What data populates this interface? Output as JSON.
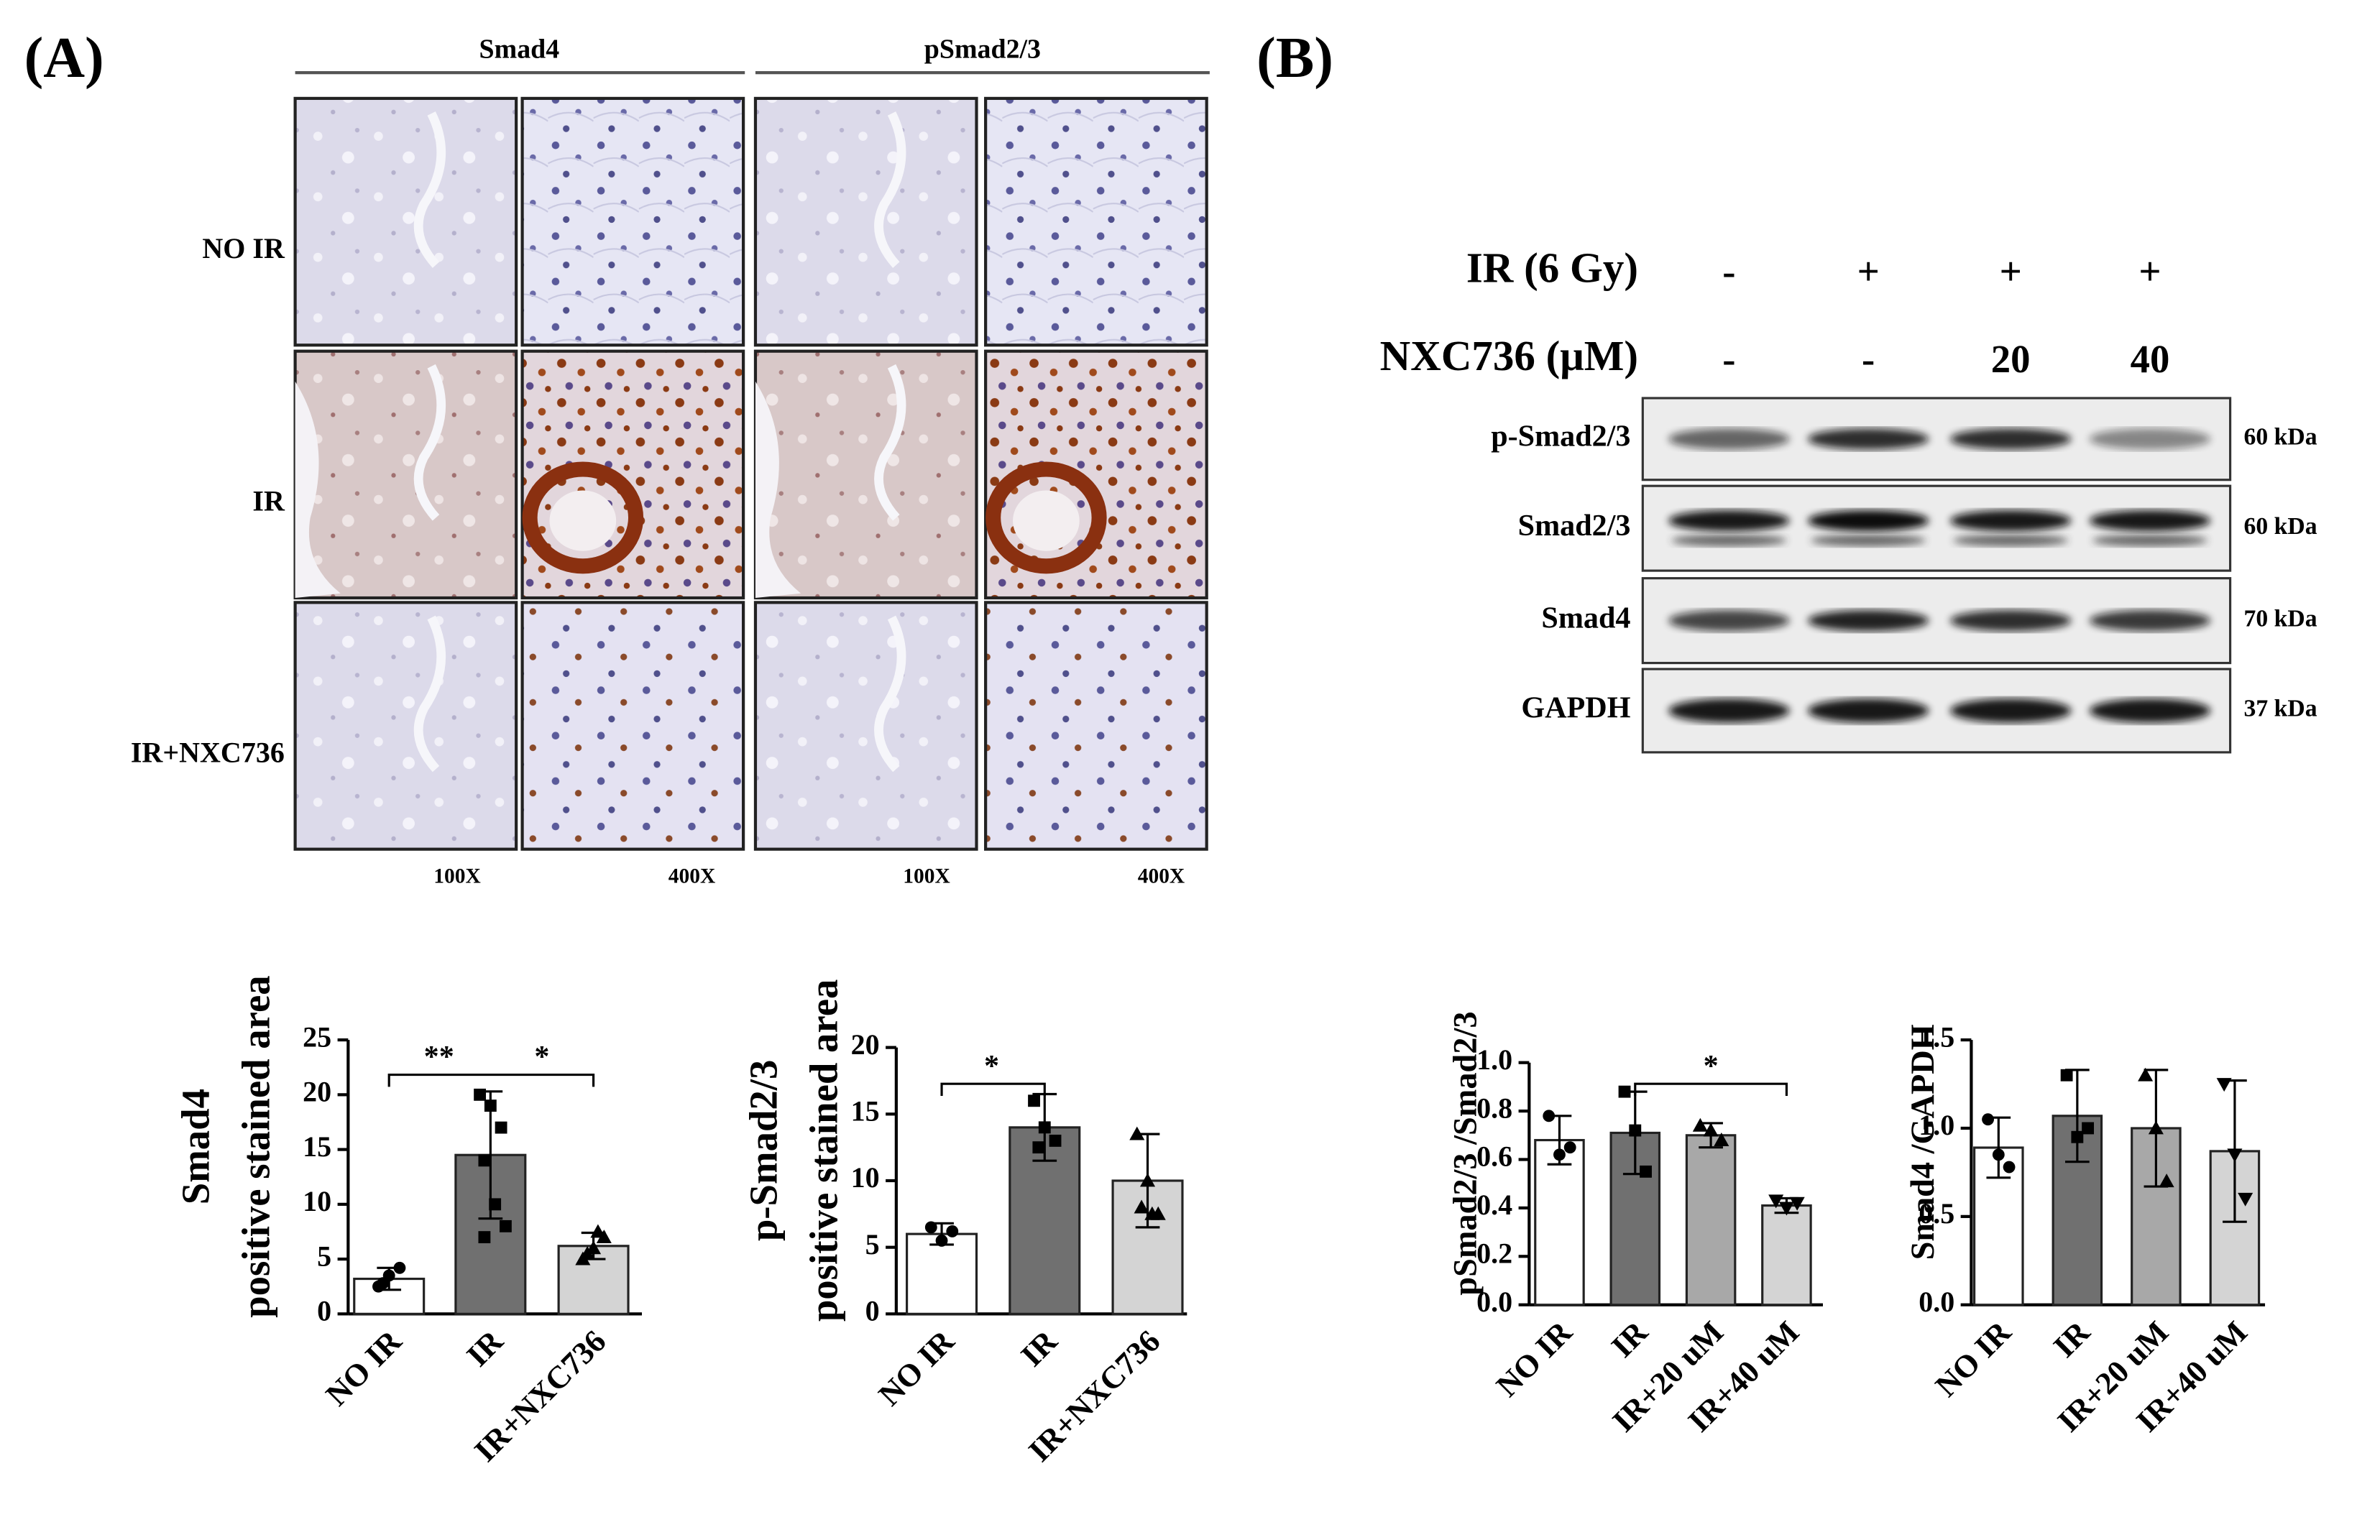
{
  "panel_labels": [
    "(A)",
    "(B)"
  ],
  "histology": {
    "columns": [
      "Smad4",
      "pSmad2/3"
    ],
    "rows": [
      "NO IR",
      "IR",
      "IR+NXC736"
    ],
    "magnifications": [
      "100X",
      "400X",
      "100X",
      "400X"
    ]
  },
  "blot": {
    "conditions": [
      {
        "label": "IR (6 Gy)",
        "lanes": [
          "-",
          "+",
          "+",
          "+"
        ]
      },
      {
        "label": "NXC736 (μM)",
        "lanes": [
          "-",
          "-",
          "20",
          "40"
        ]
      }
    ],
    "bands": [
      {
        "label": "p-Smad2/3",
        "size": "60 kDa"
      },
      {
        "label": "Smad2/3",
        "size": "60 kDa"
      },
      {
        "label": "Smad4",
        "size": "70 kDa"
      },
      {
        "label": "GAPDH",
        "size": "37 kDa"
      }
    ]
  },
  "chart_data": [
    {
      "type": "bar",
      "ylabel": [
        "Smad4",
        "positive stained area"
      ],
      "categories": [
        "NO IR",
        "IR",
        "IR+NXC736"
      ],
      "values": [
        3.2,
        14.5,
        6.2
      ],
      "errors": [
        1.0,
        5.8,
        1.2
      ],
      "points": [
        [
          2.5,
          3.5,
          4.2,
          2.8
        ],
        [
          20,
          19,
          17,
          14,
          10,
          8,
          7
        ],
        [
          5,
          6,
          7,
          5.5,
          7.5
        ]
      ],
      "colors": [
        "#ffffff",
        "#707070",
        "#d4d4d4"
      ],
      "ylim": [
        0,
        25
      ],
      "yticks": [
        0,
        5,
        10,
        15,
        20,
        25
      ],
      "significance": [
        "**",
        "*"
      ]
    },
    {
      "type": "bar",
      "ylabel": [
        "p-Smad2/3",
        "positive stained area"
      ],
      "categories": [
        "NO IR",
        "IR",
        "IR+NXC736"
      ],
      "values": [
        6,
        14,
        10
      ],
      "errors": [
        0.8,
        2.5,
        3.5
      ],
      "points": [
        [
          6.5,
          5.5,
          6.2
        ],
        [
          16,
          14,
          13,
          12.5
        ],
        [
          13.5,
          10,
          7.5,
          8,
          7.5
        ]
      ],
      "colors": [
        "#ffffff",
        "#707070",
        "#d4d4d4"
      ],
      "ylim": [
        0,
        20
      ],
      "yticks": [
        0,
        5,
        10,
        15,
        20
      ],
      "significance": [
        "*"
      ]
    },
    {
      "type": "bar",
      "ylabel": [
        "pSmad2/3 /Smad2/3"
      ],
      "categories": [
        "NO IR",
        "IR",
        "IR+20 uM",
        "IR+40 uM"
      ],
      "values": [
        0.68,
        0.71,
        0.7,
        0.41
      ],
      "errors": [
        0.1,
        0.17,
        0.05,
        0.03
      ],
      "points": [
        [
          0.78,
          0.62,
          0.65
        ],
        [
          0.88,
          0.72,
          0.55
        ],
        [
          0.74,
          0.72,
          0.68
        ],
        [
          0.43,
          0.4,
          0.42
        ]
      ],
      "colors": [
        "#ffffff",
        "#707070",
        "#a8a8a8",
        "#d4d4d4"
      ],
      "ylim": [
        0,
        1
      ],
      "yticks": [
        {
          "value": 0,
          "label": "0.0"
        },
        0.2,
        0.4,
        0.6,
        0.8,
        {
          "value": 1,
          "label": "1.0"
        }
      ],
      "significance": [
        "*"
      ]
    },
    {
      "type": "bar",
      "ylabel": [
        "Smad4 /GAPDH"
      ],
      "categories": [
        "NO IR",
        "IR",
        "IR+20 uM",
        "IR+40 uM"
      ],
      "values": [
        0.89,
        1.07,
        1.0,
        0.87
      ],
      "errors": [
        0.17,
        0.26,
        0.33,
        0.4
      ],
      "points": [
        [
          1.05,
          0.85,
          0.78
        ],
        [
          1.3,
          0.95,
          1.0
        ],
        [
          1.3,
          1.0,
          0.7
        ],
        [
          1.25,
          0.85,
          0.6
        ]
      ],
      "colors": [
        "#ffffff",
        "#707070",
        "#a8a8a8",
        "#d4d4d4"
      ],
      "ylim": [
        0,
        1.5
      ],
      "yticks": [
        {
          "value": 0,
          "label": "0.0"
        },
        0.5,
        {
          "value": 1,
          "label": "1.0"
        },
        1.5
      ],
      "significance": []
    }
  ]
}
